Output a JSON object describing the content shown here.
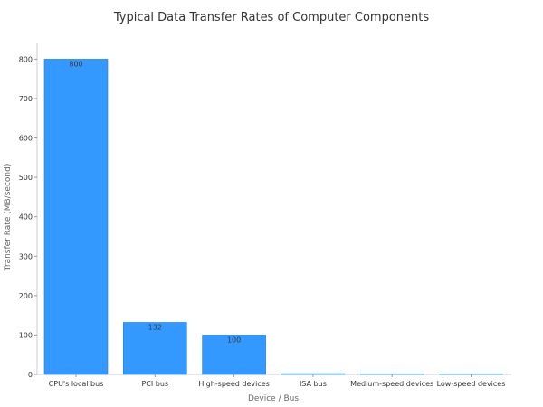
{
  "chart_data": {
    "type": "bar",
    "title": "Typical Data Transfer Rates of Computer Components",
    "xlabel": "Device / Bus",
    "ylabel": "Transfer Rate (MB/second)",
    "categories": [
      "CPU's local bus",
      "PCI bus",
      "High-speed devices",
      "ISA bus",
      "Medium-speed devices",
      "Low-speed devices"
    ],
    "values": [
      800,
      132,
      100,
      2,
      1,
      0.01
    ],
    "data_labels": [
      "800",
      "132",
      "100",
      "",
      "",
      ""
    ],
    "ylim": [
      0,
      840
    ],
    "yticks": [
      0,
      100,
      200,
      300,
      400,
      500,
      600,
      700,
      800
    ],
    "grid": false,
    "bar_color": "#3399ff",
    "bar_edge_color": "#1f7fe0"
  }
}
